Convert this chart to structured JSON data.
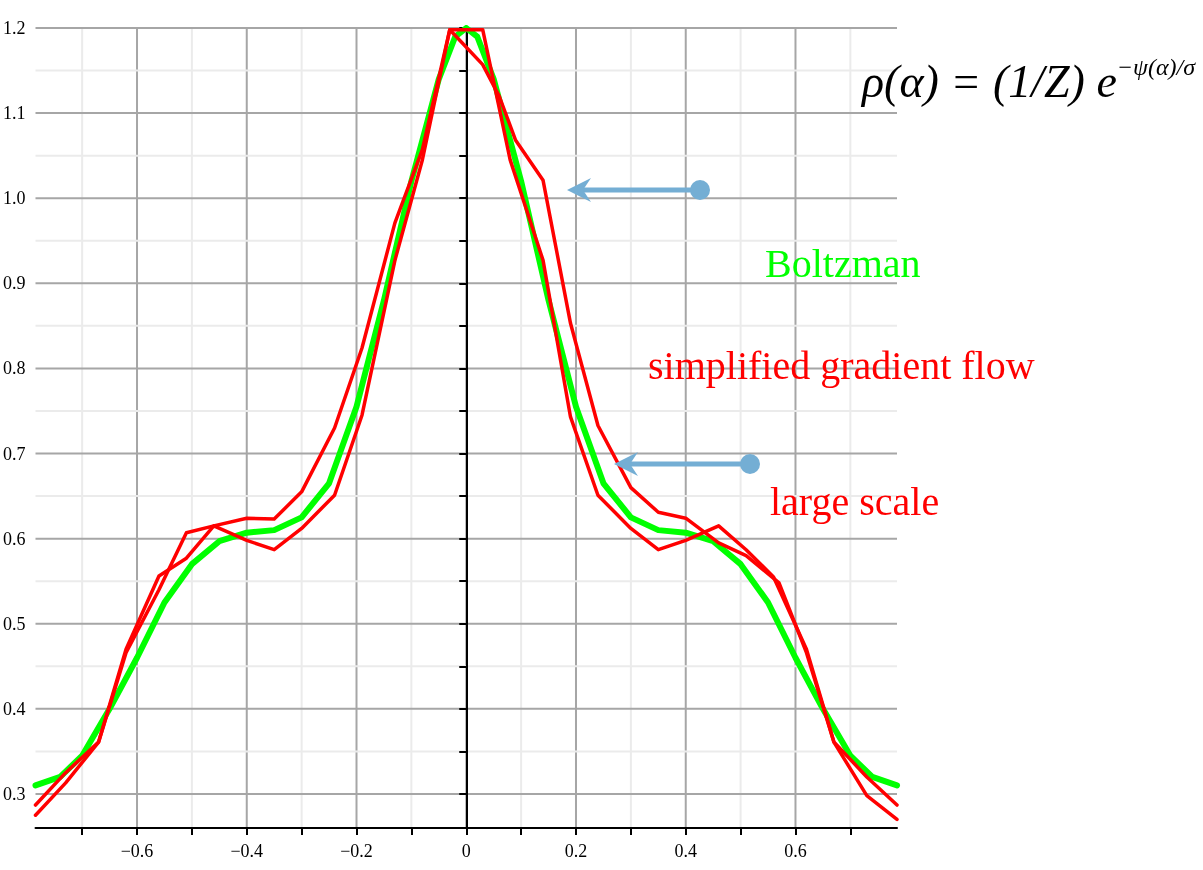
{
  "chart_data": {
    "type": "line",
    "xlim": [
      -0.785,
      0.785
    ],
    "ylim": [
      0.26,
      1.2
    ],
    "xticks": [
      {
        "value": -0.7,
        "label": null
      },
      {
        "value": -0.6,
        "label": "−0.6"
      },
      {
        "value": -0.5,
        "label": null
      },
      {
        "value": -0.4,
        "label": "−0.4"
      },
      {
        "value": -0.3,
        "label": null
      },
      {
        "value": -0.2,
        "label": "−0.2"
      },
      {
        "value": -0.1,
        "label": null
      },
      0,
      {
        "value": 0.1,
        "label": null
      },
      0.2,
      {
        "value": 0.3,
        "label": null
      },
      0.4,
      {
        "value": 0.5,
        "label": null
      },
      0.6,
      {
        "value": 0.7,
        "label": null
      }
    ],
    "yticks": [
      0.3,
      {
        "value": 0.35,
        "label": null
      },
      0.4,
      {
        "value": 0.45,
        "label": null
      },
      0.5,
      {
        "value": 0.55,
        "label": null
      },
      0.6,
      {
        "value": 0.65,
        "label": null
      },
      0.7,
      {
        "value": 0.75,
        "label": null
      },
      0.8,
      {
        "value": 0.85,
        "label": null
      },
      0.9,
      {
        "value": 0.95,
        "label": null
      },
      {
        "value": 1.0,
        "label": "1.0"
      },
      {
        "value": 1.05,
        "label": null
      },
      1.1,
      {
        "value": 1.15,
        "label": null
      },
      1.2
    ],
    "grid": true,
    "marker": "none",
    "line_style": "solid",
    "annotations": [
      "ρ(α) = (1/Z) e$^{−ψ(α)/σ}$"
    ],
    "series": [
      {
        "name": "Boltzman",
        "color": "#00ff00",
        "x": [
          -0.785,
          -0.74,
          -0.7,
          -0.65,
          -0.6,
          -0.55,
          -0.5,
          -0.45,
          -0.4,
          -0.35,
          -0.3,
          -0.25,
          -0.2,
          -0.15,
          -0.1,
          -0.05,
          -0.02,
          0,
          0.02,
          0.05,
          0.1,
          0.15,
          0.2,
          0.25,
          0.3,
          0.35,
          0.4,
          0.45,
          0.5,
          0.55,
          0.6,
          0.65,
          0.7,
          0.74,
          0.785
        ],
        "values": [
          0.31,
          0.32,
          0.345,
          0.4,
          0.46,
          0.525,
          0.57,
          0.597,
          0.607,
          0.61,
          0.625,
          0.665,
          0.755,
          0.88,
          1.02,
          1.14,
          1.19,
          1.2,
          1.19,
          1.14,
          1.02,
          0.88,
          0.755,
          0.665,
          0.625,
          0.61,
          0.607,
          0.597,
          0.57,
          0.525,
          0.46,
          0.4,
          0.345,
          0.32,
          0.31
        ]
      },
      {
        "name": "simplified gradient flow",
        "color": "#ff0000",
        "x": [
          -0.785,
          -0.73,
          -0.67,
          -0.62,
          -0.56,
          -0.51,
          -0.46,
          -0.4,
          -0.35,
          -0.3,
          -0.24,
          -0.19,
          -0.13,
          -0.08,
          -0.03,
          0.03,
          0.06,
          0.09,
          0.14,
          0.19,
          0.24,
          0.3,
          0.35,
          0.4,
          0.46,
          0.51,
          0.57,
          0.62,
          0.67,
          0.73,
          0.785
        ],
        "values": [
          0.287,
          0.325,
          0.361,
          0.466,
          0.54,
          0.607,
          0.615,
          0.624,
          0.623,
          0.655,
          0.73,
          0.824,
          0.971,
          1.057,
          1.198,
          1.157,
          1.12,
          1.068,
          1.021,
          0.853,
          0.733,
          0.66,
          0.631,
          0.624,
          0.595,
          0.58,
          0.548,
          0.466,
          0.361,
          0.32,
          0.287
        ]
      },
      {
        "name": "large scale",
        "color": "#ff0000",
        "x": [
          -0.785,
          -0.73,
          -0.67,
          -0.62,
          -0.56,
          -0.51,
          -0.46,
          -0.4,
          -0.35,
          -0.3,
          -0.24,
          -0.19,
          -0.13,
          -0.08,
          -0.03,
          0.03,
          0.08,
          0.14,
          0.19,
          0.24,
          0.3,
          0.35,
          0.4,
          0.46,
          0.51,
          0.56,
          0.62,
          0.67,
          0.73,
          0.785
        ],
        "values": [
          0.275,
          0.313,
          0.361,
          0.47,
          0.556,
          0.577,
          0.615,
          0.598,
          0.587,
          0.612,
          0.651,
          0.745,
          0.927,
          1.045,
          1.198,
          1.198,
          1.045,
          0.927,
          0.743,
          0.651,
          0.612,
          0.587,
          0.598,
          0.615,
          0.587,
          0.555,
          0.47,
          0.361,
          0.298,
          0.27
        ]
      }
    ]
  }
}
